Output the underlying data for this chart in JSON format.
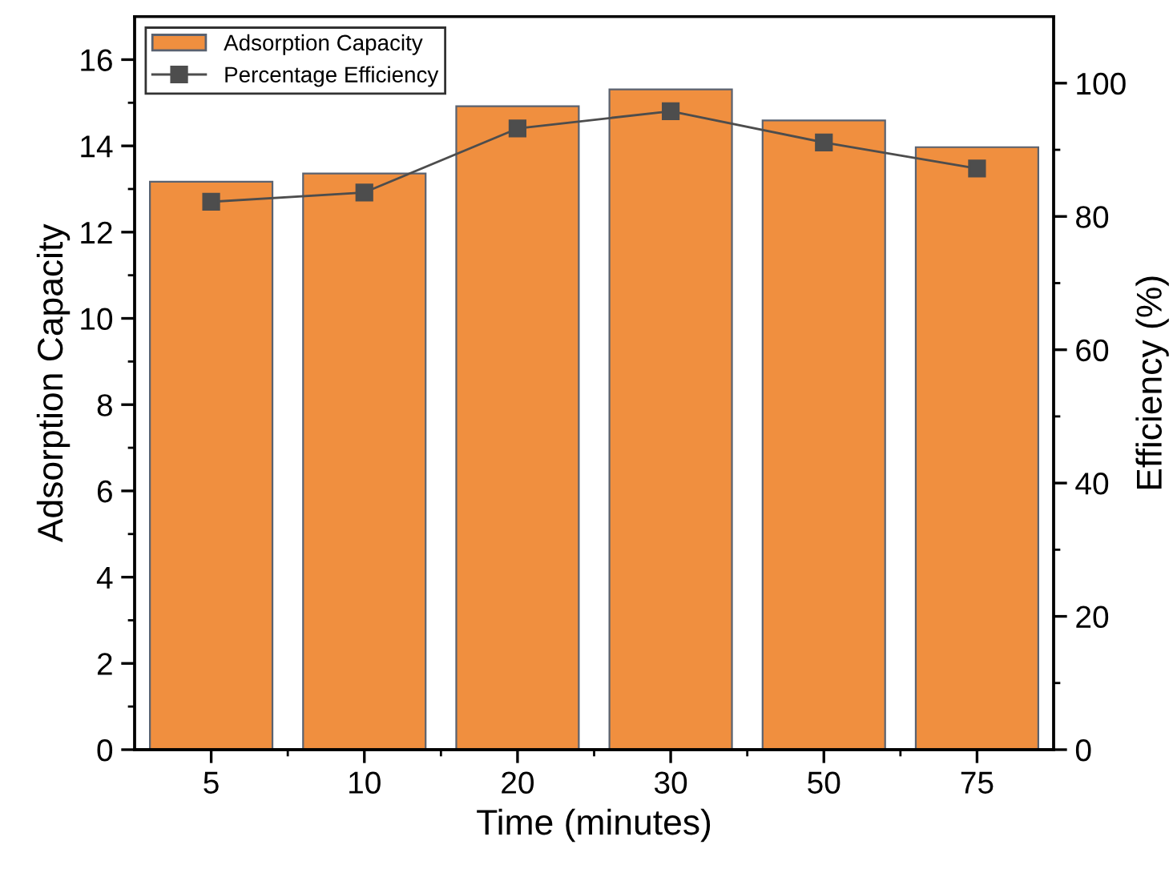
{
  "chart_data": {
    "type": "bar",
    "xlabel": "Time (minutes)",
    "ylabel": "Adsorption Capacity",
    "y2label": "Efficiency (%)",
    "categories": [
      "5",
      "10",
      "20",
      "30",
      "50",
      "75"
    ],
    "series": [
      {
        "name": "Adsorption Capacity",
        "color": "#f08f3f",
        "values": [
          13.17,
          13.36,
          14.92,
          15.31,
          14.59,
          13.97
        ]
      },
      {
        "name": "Percentage Efficiency",
        "type": "line",
        "axis": "y2",
        "color": "#4d4d4d",
        "marker": "square",
        "values": [
          82.2,
          83.6,
          93.2,
          95.8,
          91.1,
          87.2
        ]
      }
    ],
    "ylim": [
      0,
      17
    ],
    "yticks": [
      0,
      2,
      4,
      6,
      8,
      10,
      12,
      14,
      16
    ],
    "y2lim": [
      0,
      110
    ],
    "y2ticks": [
      0,
      20,
      40,
      60,
      80,
      100
    ],
    "grid": false,
    "legend": "top left"
  }
}
